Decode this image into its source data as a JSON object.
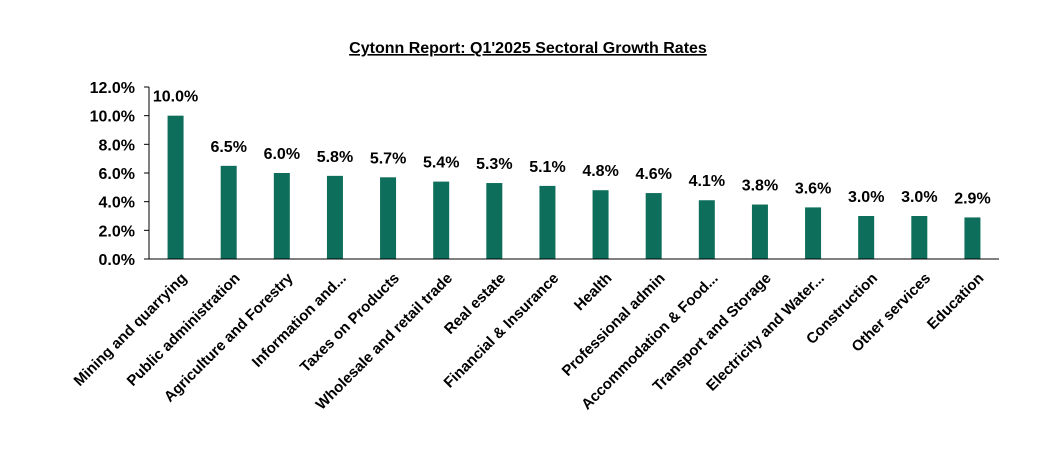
{
  "chart_data": {
    "type": "bar",
    "title": "Cytonn Report: Q1'2025 Sectoral Growth Rates",
    "categories": [
      "Mining and quarrying",
      "Public administration",
      "Agriculture and Forestry",
      "Information and...",
      "Taxes on Products",
      "Wholesale and retail trade",
      "Real estate",
      "Financial & Insurance",
      "Health",
      "Professional admin",
      "Accommodation & Food...",
      "Transport and Storage",
      "Electricity and Water...",
      "Construction",
      "Other services",
      "Education"
    ],
    "values": [
      10.0,
      6.5,
      6.0,
      5.8,
      5.7,
      5.4,
      5.3,
      5.1,
      4.8,
      4.6,
      4.1,
      3.8,
      3.6,
      3.0,
      3.0,
      2.9
    ],
    "data_labels": [
      "10.0%",
      "6.5%",
      "6.0%",
      "5.8%",
      "5.7%",
      "5.4%",
      "5.3%",
      "5.1%",
      "4.8%",
      "4.6%",
      "4.1%",
      "3.8%",
      "3.6%",
      "3.0%",
      "3.0%",
      "2.9%"
    ],
    "ylim": [
      0,
      12
    ],
    "yticks": [
      "0.0%",
      "2.0%",
      "4.0%",
      "6.0%",
      "8.0%",
      "10.0%",
      "12.0%"
    ],
    "bar_color": "#0e6e5c",
    "grid": false,
    "legend": "none"
  }
}
